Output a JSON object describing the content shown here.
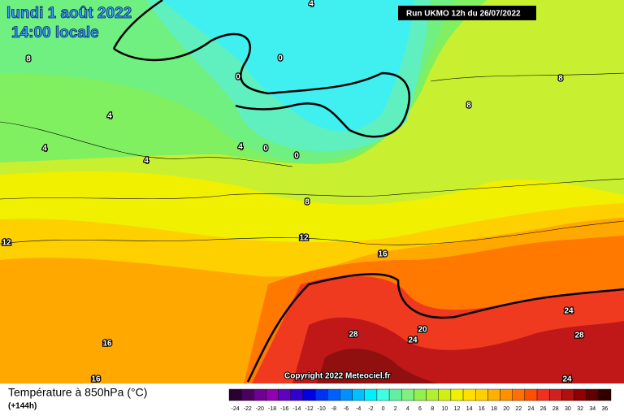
{
  "header": {
    "title": "lundi 1 août 2022",
    "time": "14:00 locale",
    "run": "Run UKMO 12h du 26/07/2022"
  },
  "map": {
    "contour_labels": [
      "4",
      "8",
      "0",
      "0",
      "4",
      "4",
      "4",
      "4",
      "0",
      "0",
      "8",
      "8",
      "8",
      "12",
      "12",
      "16",
      "16",
      "16",
      "28",
      "20",
      "24",
      "24",
      "28",
      "24"
    ],
    "copyright": "Copyright 2022 Meteociel.fr"
  },
  "legend": {
    "title": "Température à 850hPa (°C)",
    "lead": "(+144h)",
    "ticks": [
      -24,
      -22,
      -20,
      -18,
      -16,
      -14,
      -12,
      -10,
      -8,
      -6,
      -4,
      -2,
      0,
      2,
      4,
      6,
      8,
      10,
      12,
      14,
      16,
      18,
      20,
      22,
      24,
      26,
      28,
      30,
      32,
      34,
      36
    ]
  }
}
